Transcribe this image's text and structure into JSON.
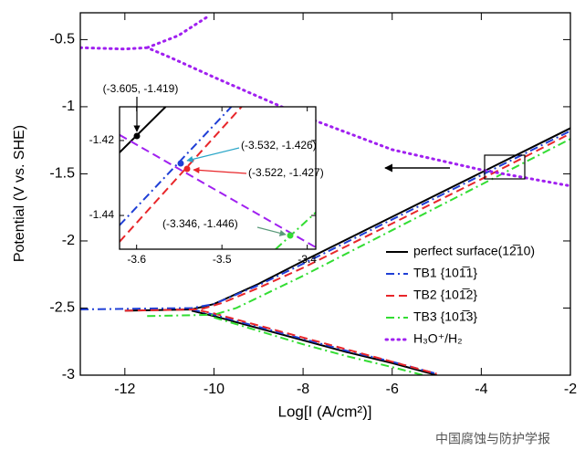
{
  "chart_data": [
    {
      "type": "line",
      "xlabel": "Log[I (A/cm²)]",
      "ylabel": "Potential (V vs. SHE)",
      "xlim": [
        -13,
        -2
      ],
      "ylim": [
        -3,
        -0.3
      ],
      "xticks": [
        -12,
        -10,
        -8,
        -6,
        -4,
        -2
      ],
      "yticks": [
        -3,
        -2.5,
        -2,
        -1.5,
        -1,
        -0.5
      ],
      "legend": "lower right",
      "series": [
        {
          "name": "perfect surface(12̅10)",
          "color": "#000000",
          "style": "solid",
          "x": [
            -12,
            -10.5,
            -10,
            -9,
            -8,
            -6,
            -4,
            -2,
            null,
            -10.5,
            -10,
            -9,
            -8,
            -7,
            -6,
            -5
          ],
          "values": [
            -2.52,
            -2.51,
            -2.47,
            -2.32,
            -2.15,
            -1.82,
            -1.49,
            -1.16,
            null,
            -2.52,
            -2.56,
            -2.65,
            -2.74,
            -2.83,
            -2.91,
            -3.0
          ]
        },
        {
          "name": "TB1 {101̅1}",
          "color": "#1f3fd6",
          "style": "dashdot",
          "x": [
            -13,
            -10.5,
            -10,
            -9,
            -8,
            -6,
            -4,
            -2,
            null,
            -10.5,
            -10,
            -9,
            -8,
            -7,
            -6,
            -5
          ],
          "values": [
            -2.51,
            -2.5,
            -2.47,
            -2.33,
            -2.17,
            -1.84,
            -1.51,
            -1.18,
            null,
            -2.51,
            -2.55,
            -2.64,
            -2.73,
            -2.82,
            -2.9,
            -2.99
          ]
        },
        {
          "name": "TB2 {101̅2}",
          "color": "#e8262a",
          "style": "dashed",
          "x": [
            -12,
            -10.3,
            -9.8,
            -9,
            -8,
            -6,
            -4,
            -2,
            null,
            -10.3,
            -10,
            -9,
            -8,
            -7,
            -6,
            -5
          ],
          "values": [
            -2.52,
            -2.51,
            -2.46,
            -2.35,
            -2.2,
            -1.87,
            -1.54,
            -1.2,
            null,
            -2.52,
            -2.54,
            -2.63,
            -2.72,
            -2.81,
            -2.9,
            -2.99
          ]
        },
        {
          "name": "TB3 {101̅3}",
          "color": "#33dd33",
          "style": "dashdot",
          "x": [
            -11.5,
            -10,
            -9.5,
            -9,
            -8,
            -6,
            -4,
            -2,
            null,
            -10,
            -9,
            -8,
            -7,
            -6,
            -5.3
          ],
          "values": [
            -2.56,
            -2.55,
            -2.5,
            -2.42,
            -2.26,
            -1.92,
            -1.58,
            -1.24,
            null,
            -2.57,
            -2.67,
            -2.77,
            -2.86,
            -2.94,
            -3.0
          ]
        },
        {
          "name": "H₃O⁺/H₂",
          "color": "#a020f0",
          "style": "dotted",
          "x": [
            -13,
            -12,
            -11.5,
            -11,
            -10,
            -8,
            -6,
            -4,
            -2,
            null,
            -11.5,
            -10.8,
            -10.1
          ],
          "values": [
            -0.56,
            -0.57,
            -0.56,
            -0.63,
            -0.78,
            -1.07,
            -1.32,
            -1.47,
            -1.59,
            null,
            -0.56,
            -0.47,
            -0.32
          ]
        }
      ]
    },
    {
      "type": "line",
      "xlim": [
        -3.62,
        -3.39
      ],
      "ylim": [
        -1.449,
        -1.411
      ],
      "xticks": [
        -3.6,
        -3.5,
        -3.4
      ],
      "yticks": [
        -1.42,
        -1.44
      ],
      "series": [
        {
          "color": "#000000",
          "style": "solid",
          "x": [
            -3.62,
            -3.566
          ],
          "values": [
            -1.4232,
            -1.411
          ]
        },
        {
          "color": "#1f3fd6",
          "style": "dashdot",
          "x": [
            -3.62,
            -3.489
          ],
          "values": [
            -1.4426,
            -1.411
          ]
        },
        {
          "color": "#e8262a",
          "style": "dashed",
          "x": [
            -3.62,
            -3.477
          ],
          "values": [
            -1.447,
            -1.411
          ]
        },
        {
          "color": "#33dd33",
          "style": "dashdot",
          "x": [
            -3.437,
            -3.39
          ],
          "values": [
            -1.449,
            -1.4392
          ]
        },
        {
          "color": "#a020f0",
          "style": "dashed",
          "x": [
            -3.62,
            -3.39
          ],
          "values": [
            -1.4185,
            -1.4485
          ]
        }
      ],
      "annotations": [
        {
          "text": "(-3.605, -1.419)"
        },
        {
          "text": "(-3.532, -1.426)"
        },
        {
          "text": "(-3.522, -1.427)"
        },
        {
          "text": "(-3.346, -1.446)"
        }
      ]
    }
  ],
  "watermark": "中国腐蚀与防护学报"
}
